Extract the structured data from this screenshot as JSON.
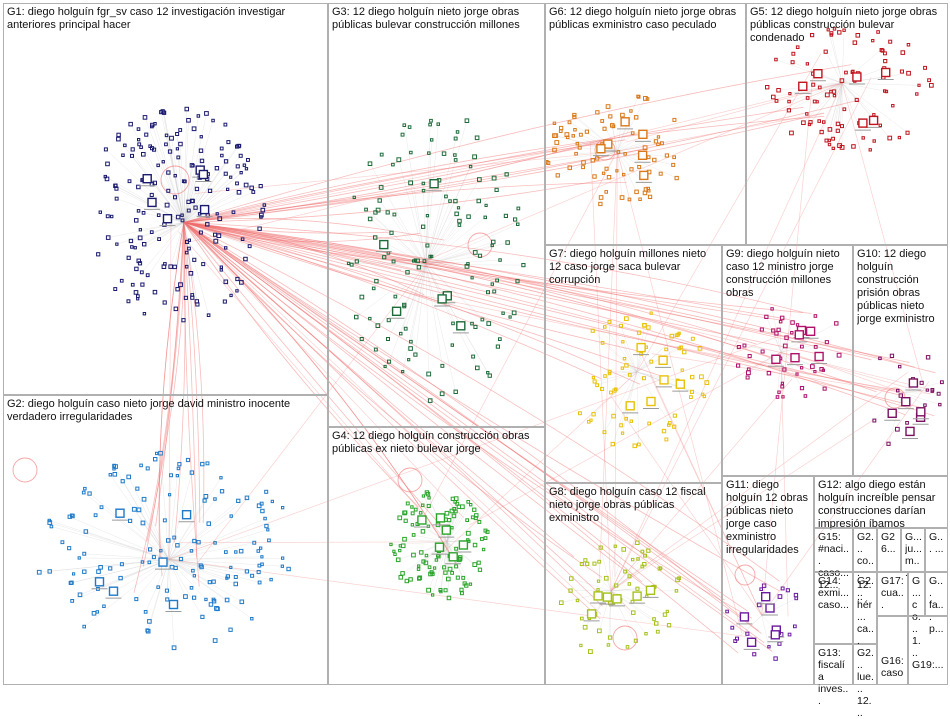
{
  "groups": [
    {
      "id": "G1",
      "label": "G1: diego holguín fgr_sv caso 12 investigación investigar anteriores principal hacer",
      "color": "#1a1a6e"
    },
    {
      "id": "G2",
      "label": "G2: diego holguín caso nieto jorge david ministro inocente verdadero irregularidades",
      "color": "#1f7ac8"
    },
    {
      "id": "G3",
      "label": "G3: 12 diego holguín nieto jorge obras públicas bulevar construcción millones",
      "color": "#1e6b3a"
    },
    {
      "id": "G4",
      "label": "G4: 12 diego holguín construcción obras públicas ex nieto bulevar jorge",
      "color": "#2aa52a"
    },
    {
      "id": "G5",
      "label": "G5: 12 diego holguín nieto jorge obras públicas construcción bulevar condenado",
      "color": "#c0141e"
    },
    {
      "id": "G6",
      "label": "G6: 12 diego holguín nieto jorge obras públicas exministro caso peculado",
      "color": "#d9791a"
    },
    {
      "id": "G7",
      "label": "G7: diego holguín millones nieto 12 caso jorge saca bulevar corrupción",
      "color": "#e8c20a"
    },
    {
      "id": "G8",
      "label": "G8: diego holguín caso 12 fiscal nieto jorge obras públicas exministro",
      "color": "#a6c21a"
    },
    {
      "id": "G9",
      "label": "G9: diego holguín nieto caso 12 ministro jorge construcción millones obras",
      "color": "#b0126a"
    },
    {
      "id": "G10",
      "label": "G10: 12 diego holguín construcción prisión obras públicas nieto jorge exministro",
      "color": "#7a1060"
    },
    {
      "id": "G11",
      "label": "G11: diego holguín 12 obras públicas nieto jorge caso exministro irregularidades",
      "color": "#6a1aa0"
    },
    {
      "id": "G12",
      "label": "G12: algo diego están holguín increíble pensar construcciones darían impresión íbamos",
      "color": "#555555"
    },
    {
      "id": "G15",
      "label": "G15: #naci... caso... 12...",
      "color": "#555555"
    },
    {
      "id": "G2x",
      "label": "G2... co... 12...",
      "color": "#555555"
    },
    {
      "id": "G26",
      "label": "G26...",
      "color": "#555555"
    },
    {
      "id": "G26b",
      "label": "G... ju... m...",
      "color": "#555555"
    },
    {
      "id": "G23",
      "label": "G... ...",
      "color": "#555555"
    },
    {
      "id": "G14",
      "label": "G14: exmi... caso...",
      "color": "#555555"
    },
    {
      "id": "G2y",
      "label": "G2... hér... ca...",
      "color": "#555555"
    },
    {
      "id": "G17",
      "label": "G17: cua...",
      "color": "#555555"
    },
    {
      "id": "G18",
      "label": "G... co... 1...",
      "color": "#555555"
    },
    {
      "id": "G21",
      "label": "G... fa... p...",
      "color": "#555555"
    },
    {
      "id": "G13",
      "label": "G13: fiscalía inves...",
      "color": "#555555"
    },
    {
      "id": "G2z",
      "label": "G2... lue... 12...",
      "color": "#555555"
    },
    {
      "id": "G16",
      "label": "G16: caso",
      "color": "#555555"
    },
    {
      "id": "G19",
      "label": "G19:...",
      "color": "#555555"
    }
  ]
}
